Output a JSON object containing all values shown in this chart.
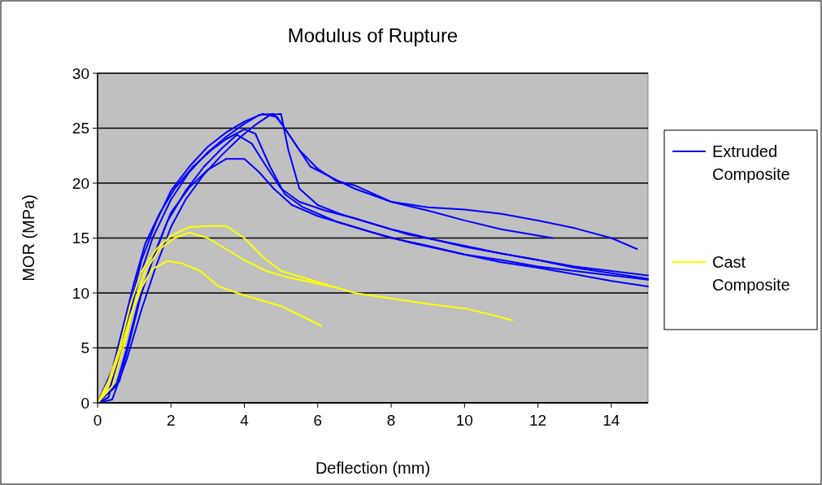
{
  "chart_data": {
    "type": "line",
    "title": "Modulus of Rupture",
    "xlabel": "Deflection (mm)",
    "ylabel": "MOR (MPa)",
    "xlim": [
      0,
      15
    ],
    "xticks": [
      0,
      2,
      4,
      6,
      8,
      10,
      12,
      14
    ],
    "ylim": [
      0,
      30
    ],
    "yticks": [
      0,
      5,
      10,
      15,
      20,
      25,
      30
    ],
    "grid": "y",
    "legend": "right",
    "marker": "none",
    "line_style": "solid",
    "series": [
      {
        "name": "Extruded Composite",
        "color": "#0000ff",
        "x": [
          0,
          0.3,
          0.5,
          0.8,
          1.1,
          1.5,
          2,
          2.5,
          3,
          3.5,
          4,
          4.4,
          4.8,
          5.1,
          5.5,
          6,
          6.5,
          7,
          8,
          9,
          10,
          11,
          12,
          13,
          14,
          14.7
        ],
        "values": [
          0,
          0.5,
          3,
          7,
          11,
          15,
          18.5,
          21,
          22.8,
          24.2,
          25.4,
          26.2,
          26.3,
          25,
          23,
          21.3,
          20.2,
          19.8,
          18.3,
          17.8,
          17.6,
          17.2,
          16.6,
          15.9,
          15,
          14
        ]
      },
      {
        "color": "#0000ff",
        "x": [
          0,
          0.3,
          0.6,
          0.9,
          1.2,
          1.6,
          2,
          2.5,
          3,
          3.5,
          4,
          4.5,
          4.9,
          5.3,
          5.8,
          6.5,
          7,
          8,
          9,
          10,
          11,
          12.4
        ],
        "values": [
          0,
          1,
          4.5,
          9,
          13,
          16.5,
          19.3,
          21.5,
          23.3,
          24.6,
          25.6,
          26.3,
          26,
          24,
          21.5,
          20.3,
          19.5,
          18.3,
          17.5,
          16.6,
          15.8,
          15
        ]
      },
      {
        "color": "#0000ff",
        "x": [
          0,
          0.4,
          0.7,
          1,
          1.3,
          1.7,
          2.1,
          2.6,
          3.1,
          3.5,
          4,
          4.3,
          4.7,
          5.1,
          5.6,
          6.5,
          7.5,
          8.5,
          10,
          11,
          12,
          13,
          14,
          15
        ],
        "values": [
          0,
          3,
          7,
          11,
          14.5,
          17.3,
          19.5,
          21.5,
          23,
          24,
          24.9,
          24.5,
          21.5,
          19,
          17.8,
          16.5,
          15.5,
          14.6,
          13.5,
          13,
          12.4,
          12,
          11.6,
          11.2
        ]
      },
      {
        "color": "#0000ff",
        "x": [
          0,
          0.5,
          0.8,
          1.1,
          1.5,
          1.9,
          2.4,
          2.9,
          3.4,
          3.8,
          4.2,
          4.6,
          5,
          5.5,
          6.2,
          7,
          8,
          9,
          10,
          11,
          12,
          13,
          14,
          15
        ],
        "values": [
          0,
          1.5,
          5,
          9,
          13,
          16.5,
          19.3,
          21.5,
          23.2,
          24.4,
          23.6,
          21.5,
          19.5,
          18.3,
          17.5,
          16.8,
          15.8,
          15,
          14.2,
          13.6,
          13,
          12.4,
          12,
          11.6
        ]
      },
      {
        "color": "#0000ff",
        "x": [
          0,
          0.6,
          0.9,
          1.2,
          1.6,
          2,
          2.5,
          3,
          3.5,
          4,
          4.4,
          4.8,
          5.3,
          6,
          7,
          8,
          9,
          10,
          11,
          12,
          13,
          14,
          15
        ],
        "values": [
          0,
          2,
          6,
          10,
          14,
          17.3,
          19.6,
          21.2,
          22.2,
          22.2,
          21,
          19.5,
          18,
          17,
          16,
          15,
          14.3,
          13.5,
          12.8,
          12.3,
          11.7,
          11.1,
          10.6
        ]
      },
      {
        "color": "#0000ff",
        "x": [
          0,
          0.4,
          0.8,
          1.2,
          1.6,
          2,
          2.4,
          2.9,
          3.4,
          3.9,
          4.3,
          4.7,
          5,
          5.2,
          5.5,
          6,
          6.6,
          7.5,
          8.5,
          10,
          11,
          12,
          13,
          14,
          15
        ],
        "values": [
          0,
          0.3,
          4,
          8.5,
          12.5,
          16,
          18.5,
          20.8,
          22.6,
          24.2,
          25.3,
          26.2,
          26.3,
          23,
          19.5,
          18,
          17.2,
          16.3,
          15.3,
          14.3,
          13.6,
          13,
          12.3,
          11.8,
          11.3
        ]
      },
      {
        "name": "Cast Composite",
        "color": "#ffff00",
        "x": [
          0,
          0.3,
          0.6,
          0.9,
          1.2,
          1.6,
          2,
          2.5,
          3,
          3.5,
          4,
          4.5,
          5,
          5.5,
          6,
          6.5,
          7,
          8,
          9,
          10,
          11,
          11.3
        ],
        "values": [
          0,
          2,
          5,
          9,
          12,
          14,
          15.2,
          16,
          16.1,
          16.1,
          15,
          13.3,
          12,
          11.5,
          11,
          10.5,
          10,
          9.5,
          9,
          8.6,
          7.8,
          7.5
        ]
      },
      {
        "color": "#ffff00",
        "x": [
          0,
          0.4,
          0.7,
          1,
          1.3,
          1.7,
          2.1,
          2.5,
          3,
          3.5,
          4,
          4.6,
          5.2,
          5.8,
          6.5
        ],
        "values": [
          0,
          1.5,
          5,
          9,
          12,
          14,
          15,
          15.5,
          15,
          14,
          13,
          12,
          11.4,
          11,
          10.5
        ]
      },
      {
        "color": "#ffff00",
        "x": [
          0,
          0.3,
          0.6,
          0.9,
          1.2,
          1.5,
          1.9,
          2.3,
          2.8,
          3.3,
          3.8,
          4.5,
          5,
          5.5,
          6.1
        ],
        "values": [
          0,
          1.5,
          4.5,
          8,
          10.5,
          12.2,
          12.9,
          12.7,
          12,
          10.6,
          10,
          9.3,
          8.8,
          8,
          7
        ]
      }
    ]
  }
}
